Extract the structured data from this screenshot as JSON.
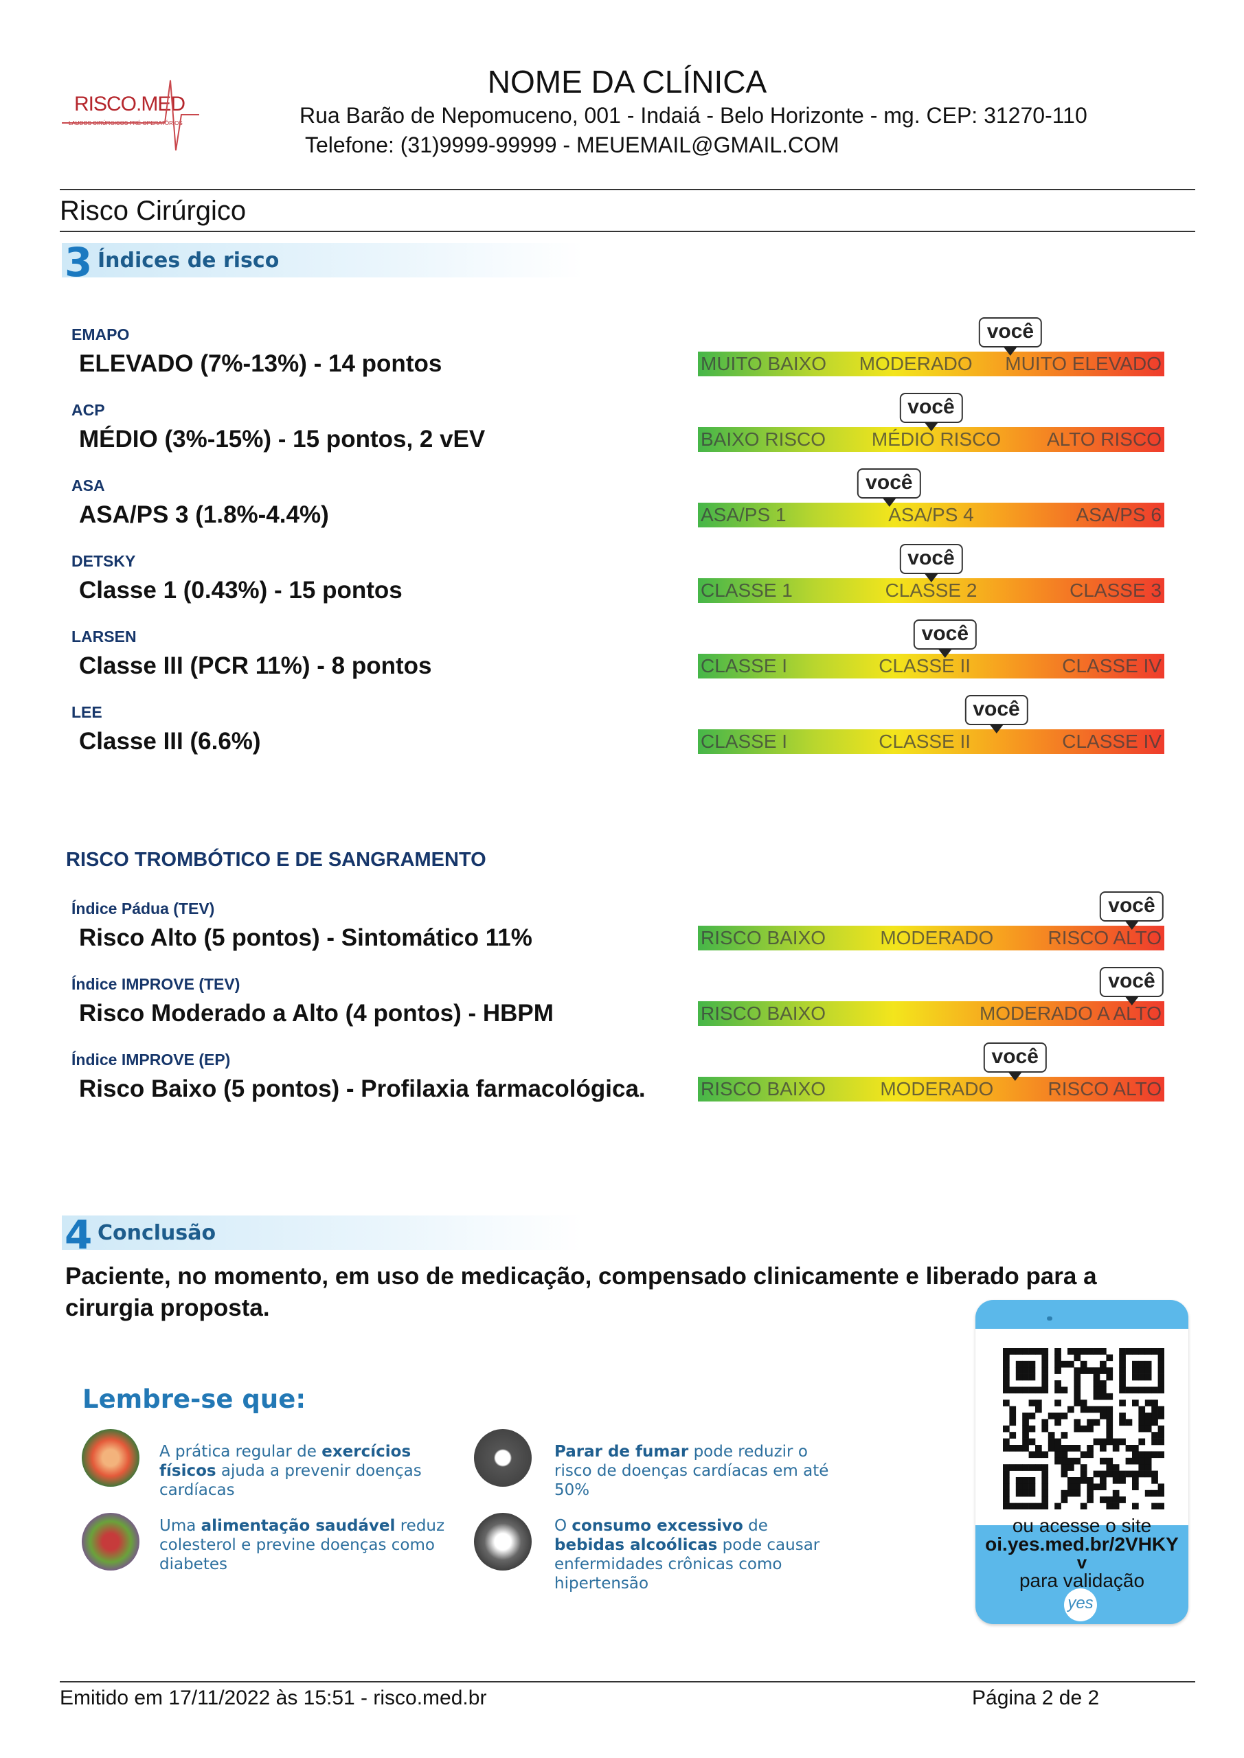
{
  "header": {
    "logo": "RISCO.MED",
    "logo_tagline": "LAUDOS CIRÚRGICOS PRÉ-OPERATÓRIOS",
    "clinic_name": "NOME DA CLÍNICA",
    "address": "Rua Barão de Nepomuceno, 001 - Indaiá - Belo Horizonte - mg. CEP: 31270-110",
    "contact": "Telefone: (31)9999-99999 - MEUEMAIL@GMAIL.COM"
  },
  "page_title": "Risco Cirúrgico",
  "risk_section": {
    "number": "3",
    "title": "Índices de risco",
    "indices": [
      {
        "name": "EMAPO",
        "result": "ELEVADO (7%-13%) - 14 pontos",
        "marker": "você",
        "scale": [
          "MUITO BAIXO",
          "MODERADO",
          "MUITO ELEVADO"
        ]
      },
      {
        "name": "ACP",
        "result": "MÉDIO (3%-15%) - 15 pontos, 2 vEV",
        "marker": "você",
        "scale": [
          "BAIXO RISCO",
          "MÉDIO RISCO",
          "ALTO RISCO"
        ]
      },
      {
        "name": "ASA",
        "result": "ASA/PS 3 (1.8%-4.4%)",
        "marker": "você",
        "scale": [
          "ASA/PS 1",
          "ASA/PS 4",
          "ASA/PS 6"
        ]
      },
      {
        "name": "DETSKY",
        "result": "Classe 1 (0.43%) - 15 pontos",
        "marker": "você",
        "scale": [
          "CLASSE 1",
          "CLASSE 2",
          "CLASSE 3"
        ]
      },
      {
        "name": "LARSEN",
        "result": "Classe III (PCR 11%) - 8 pontos",
        "marker": "você",
        "scale": [
          "CLASSE I",
          "CLASSE II",
          "CLASSE IV"
        ]
      },
      {
        "name": "LEE",
        "result": "Classe III (6.6%)",
        "marker": "você",
        "scale": [
          "CLASSE I",
          "CLASSE II",
          "CLASSE IV"
        ]
      }
    ]
  },
  "thrombotic": {
    "title": "RISCO TROMBÓTICO E DE SANGRAMENTO",
    "indices": [
      {
        "name": "Índice Pádua (TEV)",
        "result": "Risco Alto (5 pontos) - Sintomático 11%",
        "marker": "você",
        "scale": [
          "RISCO BAIXO",
          "MODERADO",
          "RISCO ALTO"
        ]
      },
      {
        "name": "Índice IMPROVE (TEV)",
        "result": "Risco Moderado a Alto (4 pontos) - HBPM",
        "marker": "você",
        "scale": [
          "RISCO BAIXO",
          "MODERADO A ALTO"
        ]
      },
      {
        "name": "Índice IMPROVE (EP)",
        "result": "Risco Baixo (5 pontos) - Profilaxia farmacológica.",
        "marker": "você",
        "scale": [
          "RISCO BAIXO",
          "MODERADO",
          "RISCO ALTO"
        ]
      }
    ]
  },
  "conclusion": {
    "number": "4",
    "title": "Conclusão",
    "text": "Paciente, no momento, em uso de medicação, compensado clinicamente e liberado para a cirurgia proposta."
  },
  "reminders": {
    "title": "Lembre-se que:",
    "items": [
      {
        "parts": [
          {
            "text": "A prática regular de ",
            "bold": false
          },
          {
            "text": "exercícios físicos",
            "bold": true
          },
          {
            "text": " ajuda a prevenir doenças cardíacas",
            "bold": false
          }
        ]
      },
      {
        "parts": [
          {
            "text": "Parar de fumar",
            "bold": true
          },
          {
            "text": " pode reduzir o risco de doenças cardíacas em até 50%",
            "bold": false
          }
        ]
      },
      {
        "parts": [
          {
            "text": "Uma ",
            "bold": false
          },
          {
            "text": "alimentação saudável",
            "bold": true
          },
          {
            "text": " reduz colesterol e previne doenças como diabetes",
            "bold": false
          }
        ]
      },
      {
        "parts": [
          {
            "text": "O ",
            "bold": false
          },
          {
            "text": "consumo excessivo",
            "bold": true
          },
          {
            "text": " de ",
            "bold": false
          },
          {
            "text": "bebidas alcoólicas",
            "bold": true
          },
          {
            "text": " pode causar enfermidades crônicas como hipertensão",
            "bold": false
          }
        ]
      }
    ]
  },
  "validation": {
    "line1": "ou acesse o site",
    "url": "oi.yes.med.br/2VHKY",
    "line3": "v",
    "line4": "para validação",
    "brand": "yes"
  },
  "footer": {
    "issued": "Emitido em 17/11/2022 às 15:51 - risco.med.br",
    "page": "Página 2 de 2"
  }
}
